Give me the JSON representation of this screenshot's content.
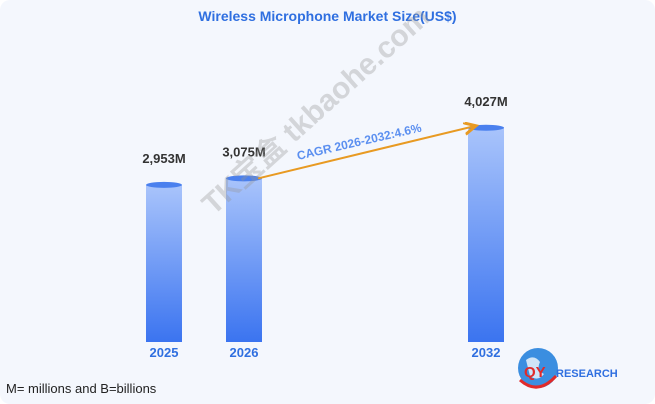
{
  "chart_data": {
    "type": "bar",
    "title": "Wireless Microphone Market Size(US$)",
    "categories": [
      "2025",
      "2026",
      "2032"
    ],
    "values": [
      2953,
      3075,
      4027
    ],
    "value_labels": [
      "2,953M",
      "3,075M",
      "4,027M"
    ],
    "annotation": "CAGR 2026-2032:4.6%",
    "xlabel": "",
    "ylabel": "",
    "grid": false
  },
  "footnote": "M= millions and B=billions",
  "logo": "QYRESEARCH",
  "watermark": "TK宝盒 tkbaohe.com",
  "colors": {
    "bar_top": "#a9c4fb",
    "bar_bottom": "#3b74f0",
    "title": "#2f6fe0",
    "arrow": "#e89a22",
    "year": "#2f6fe0"
  }
}
